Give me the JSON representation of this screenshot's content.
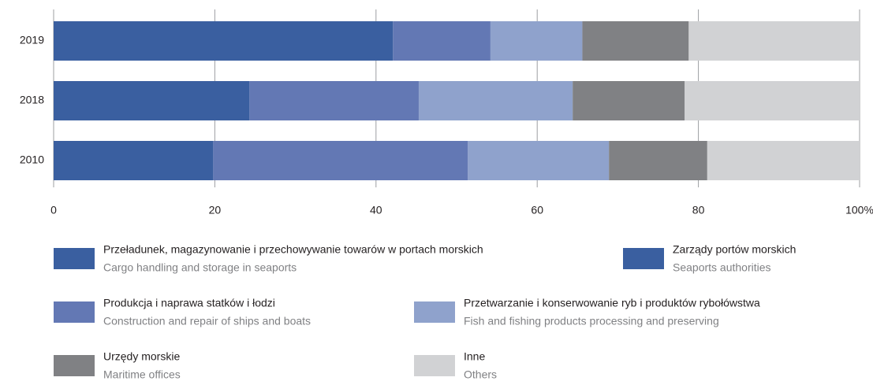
{
  "chart_data": {
    "type": "stacked-bar-horizontal",
    "categories": [
      "2019",
      "2018",
      "2010"
    ],
    "series": [
      {
        "name": "Przeładunek, magazynowanie i przechowywanie towarów w portach morskich",
        "name_en": "Cargo handling and storage in seaports",
        "color": "#3a5fa0",
        "values": [
          42.1,
          24.3,
          19.8
        ]
      },
      {
        "name": "Zarządy portów morskich",
        "name_en": "Seaports authorities",
        "color": "#3a5fa0",
        "values": [
          null,
          null,
          null
        ]
      },
      {
        "name": "Produkcja i naprawa statków i łodzi",
        "name_en": "Construction and repair of ships and boats",
        "color": "#6378b4",
        "values": [
          12.1,
          21.0,
          31.6
        ]
      },
      {
        "name": "Przetwarzanie i konserwowanie ryb i produktów rybołówstwa",
        "name_en": "Fish and fishing products processing  and preserving",
        "color": "#8fa2cc",
        "values": [
          11.4,
          19.1,
          17.5
        ]
      },
      {
        "name": "Urzędy morskie",
        "name_en": "Maritime offices",
        "color": "#808184",
        "values": [
          13.2,
          13.9,
          12.2
        ]
      },
      {
        "name": "Inne",
        "name_en": "Others",
        "color": "#d1d2d4",
        "values": [
          21.2,
          21.7,
          18.9
        ]
      }
    ],
    "xlim": [
      0,
      100
    ],
    "xticks": [
      0,
      20,
      40,
      60,
      80,
      {
        "value": 100,
        "label": "100%"
      }
    ],
    "grid": true
  }
}
